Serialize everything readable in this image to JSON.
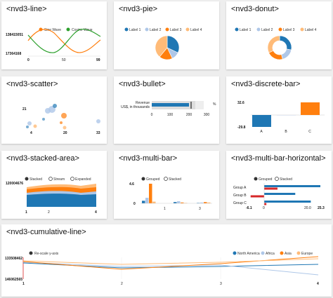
{
  "cards": {
    "line": {
      "title": "<nvd3-line>",
      "legend": [
        "Sine Wave",
        "Cosine Wave"
      ],
      "y_top": "138415051",
      "y_bottom": "17364168",
      "x_ticks": [
        "0",
        "50",
        "99"
      ]
    },
    "pie": {
      "title": "<nvd3-pie>",
      "legend": [
        "Label 1",
        "Label 2",
        "Label 3",
        "Label 4"
      ]
    },
    "donut": {
      "title": "<nvd3-donut>",
      "legend": [
        "Label 1",
        "Label 2",
        "Label 3",
        "Label 4"
      ]
    },
    "scatter": {
      "title": "<nvd3-scatter>",
      "y_tick": "21",
      "x_ticks": [
        "4",
        "20",
        "33"
      ]
    },
    "bullet": {
      "title": "<nvd3-bullet>",
      "label_1": "Revenue",
      "label_2": "US$, in thousands",
      "x_ticks": [
        "0",
        "100",
        "200",
        "300"
      ],
      "right_mark": "%"
    },
    "discrete_bar": {
      "title": "<nvd3-discrete-bar>",
      "y_top": "32.6",
      "y_bottom": "-29.8",
      "categories": [
        "A",
        "B",
        "C"
      ]
    },
    "stacked_area": {
      "title": "<nvd3-stacked-area>",
      "controls": [
        "Stacked",
        "Stream",
        "Expanded"
      ],
      "y_tick": "120004676",
      "x_ticks": [
        "1",
        "2",
        "4"
      ]
    },
    "multi_bar": {
      "title": "<nvd3-multi-bar>",
      "controls": [
        "Grouped",
        "Stacked"
      ],
      "y_tick": "4.6",
      "y_zero": "0",
      "x_ticks": [
        "1",
        "3"
      ]
    },
    "multi_bar_horizontal": {
      "title": "<nvd3-multi-bar-horizontal>",
      "controls": [
        "Grouped",
        "Stacked"
      ],
      "groups": [
        "Group A",
        "Group B",
        "Group C"
      ],
      "x_ticks": [
        "-6.1",
        "0",
        "20.0",
        "25.3"
      ]
    },
    "cumulative_line": {
      "title": "<nvd3-cumulative-line>",
      "control": "Re-scale y-axis",
      "legend": [
        "North America",
        "Africa",
        "Asia",
        "Europe"
      ],
      "y_top": "133508462",
      "y_bottom": "146062565",
      "x_ticks": [
        "1",
        "2",
        "3",
        "4"
      ]
    }
  },
  "colors": {
    "blue": "#1f77b4",
    "light_blue": "#aec7e8",
    "orange": "#ff7f0e",
    "light_orange": "#ffbb78",
    "green": "#2ca02c",
    "red": "#d62728"
  },
  "chart_data": [
    {
      "type": "line",
      "series": [
        {
          "name": "Sine Wave",
          "x": [
            0,
            10,
            20,
            30,
            40,
            50,
            60,
            70,
            80,
            90,
            99
          ],
          "values": [
            0,
            0.59,
            0.95,
            0.95,
            0.59,
            0,
            -0.59,
            -0.95,
            -0.95,
            -0.59,
            0
          ]
        },
        {
          "name": "Cosine Wave",
          "x": [
            0,
            10,
            20,
            30,
            40,
            50,
            60,
            70,
            80,
            90,
            99
          ],
          "values": [
            1,
            0.81,
            0.31,
            -0.31,
            -0.81,
            -1,
            -0.81,
            -0.31,
            0.31,
            0.81,
            1
          ]
        }
      ]
    },
    {
      "type": "pie",
      "categories": [
        "Label 1",
        "Label 2",
        "Label 3",
        "Label 4"
      ],
      "values": [
        32,
        11,
        18,
        39
      ]
    },
    {
      "type": "pie",
      "categories": [
        "Label 1",
        "Label 2",
        "Label 3",
        "Label 4"
      ],
      "values": [
        28,
        18,
        22,
        32
      ]
    },
    {
      "type": "bar",
      "categories": [
        "A",
        "B",
        "C"
      ],
      "values": [
        -29.8,
        0,
        32.6
      ],
      "ylim": [
        -29.8,
        32.6
      ]
    },
    {
      "type": "bar",
      "categories": [
        "Group A",
        "Group B",
        "Group C"
      ],
      "series": [
        {
          "values": [
            25.3,
            14.0,
            21.0
          ]
        },
        {
          "values": [
            6.0,
            -6.1,
            1.0
          ]
        }
      ],
      "xlim": [
        -6.1,
        25.3
      ]
    },
    {
      "type": "bar",
      "categories": [
        "1",
        "2",
        "3"
      ],
      "series": [
        {
          "values": [
            0.6,
            0.3,
            0.1
          ]
        },
        {
          "values": [
            1.3,
            0.5,
            0.2
          ]
        },
        {
          "values": [
            4.6,
            0.2,
            0.3
          ]
        },
        {
          "values": [
            0.4,
            0.1,
            0.2
          ]
        }
      ],
      "ylim": [
        0,
        4.6
      ]
    }
  ]
}
